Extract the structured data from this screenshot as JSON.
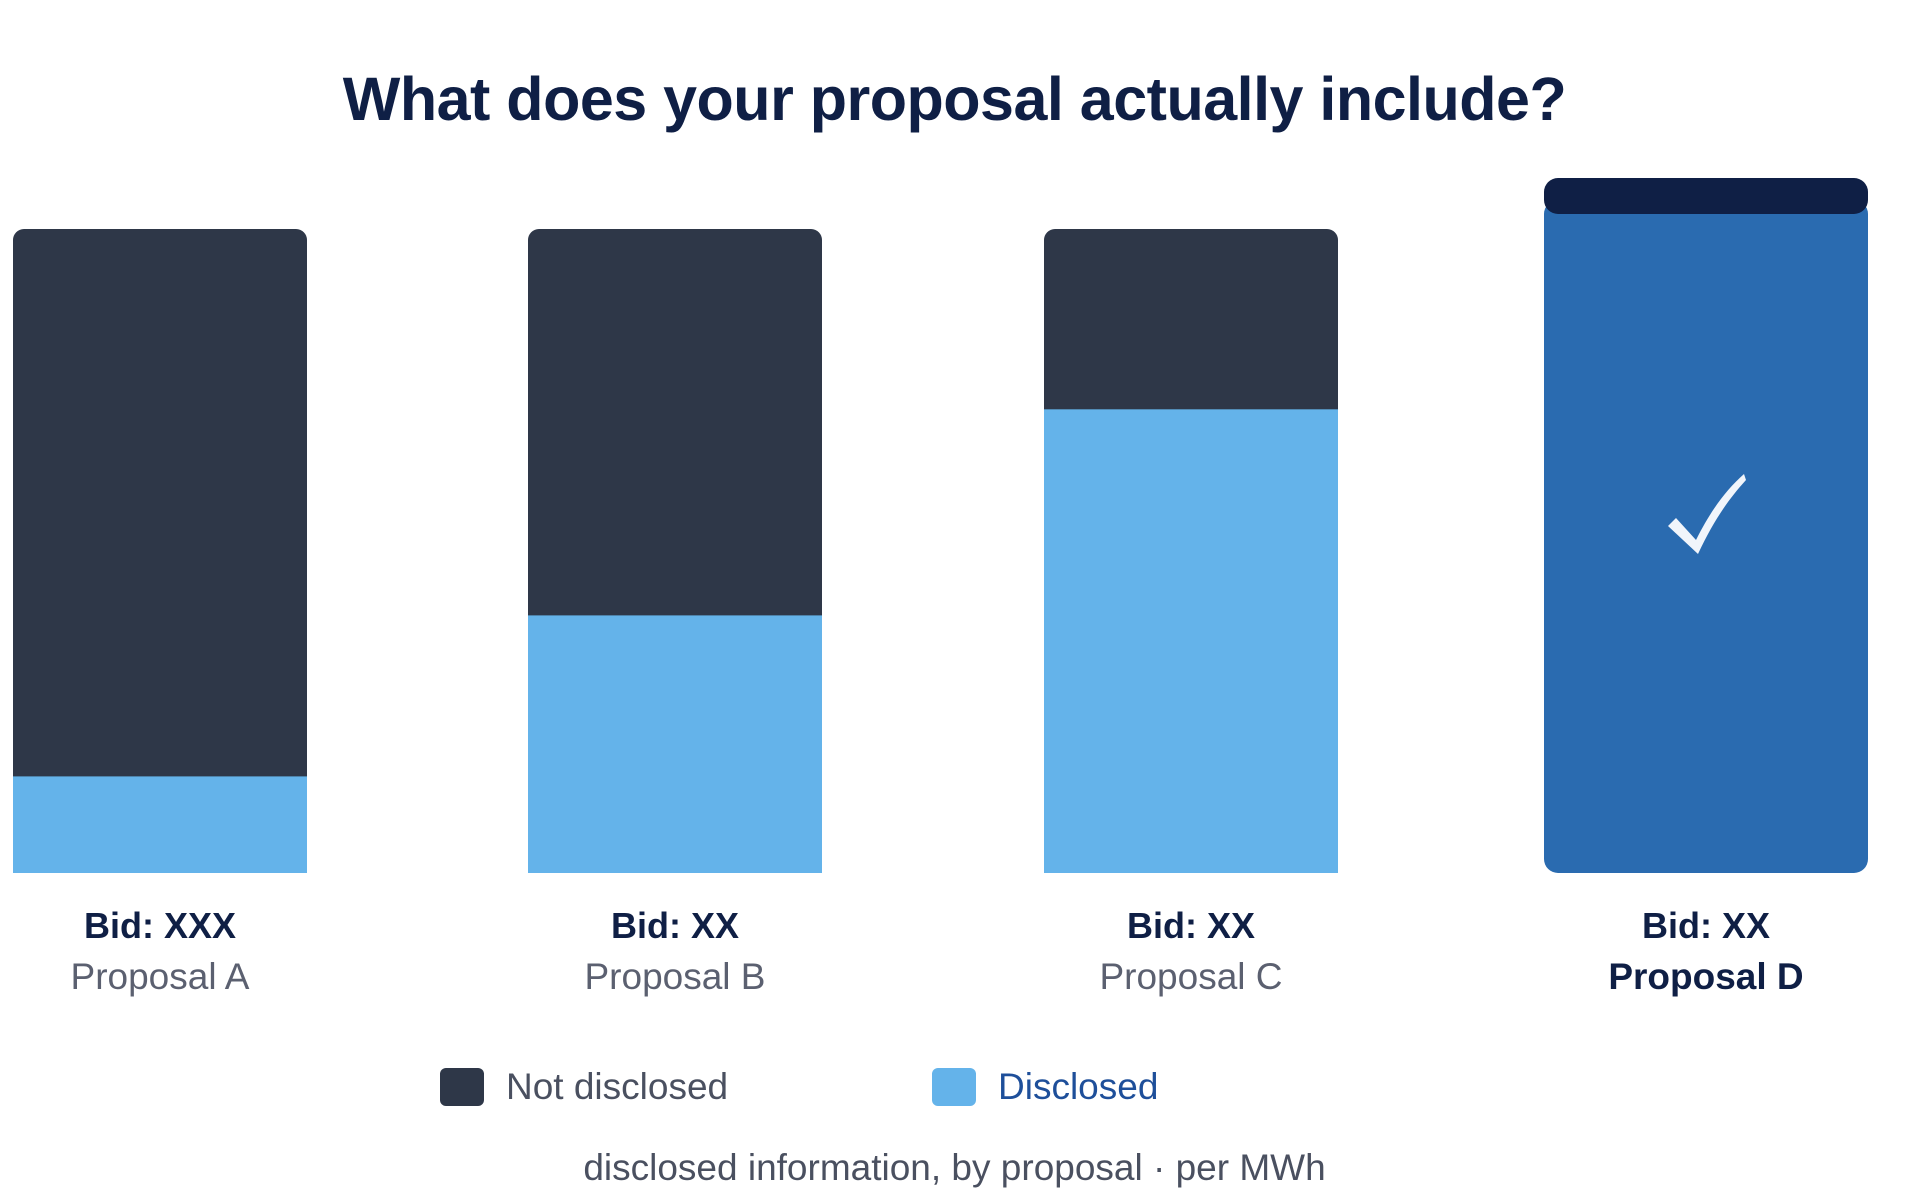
{
  "chart_data": {
    "type": "bar",
    "stacked": true,
    "title": "What does your proposal actually include?",
    "caption": "disclosed information, by proposal · per MWh",
    "categories": [
      "Proposal A",
      "Proposal B",
      "Proposal C",
      "Proposal D"
    ],
    "bid_labels": [
      "Bid: XXX",
      "Bid: XX",
      "Bid: XX",
      "Bid: XX"
    ],
    "highlighted": "Proposal D",
    "series": [
      {
        "name": "Disclosed",
        "values": [
          15,
          40,
          72,
          100
        ]
      },
      {
        "name": "Not disclosed",
        "values": [
          85,
          60,
          28,
          0
        ]
      }
    ],
    "ylim": [
      0,
      100
    ],
    "legend_position": "bottom",
    "colors": {
      "Not disclosed": "#2e3748",
      "Disclosed": "#64b3ea",
      "highlight_bar": "#2a6bb0",
      "highlight_cap": "#0f1f45",
      "title": "#0f1f45"
    },
    "icons": {
      "highlight": "checkmark-icon"
    }
  }
}
